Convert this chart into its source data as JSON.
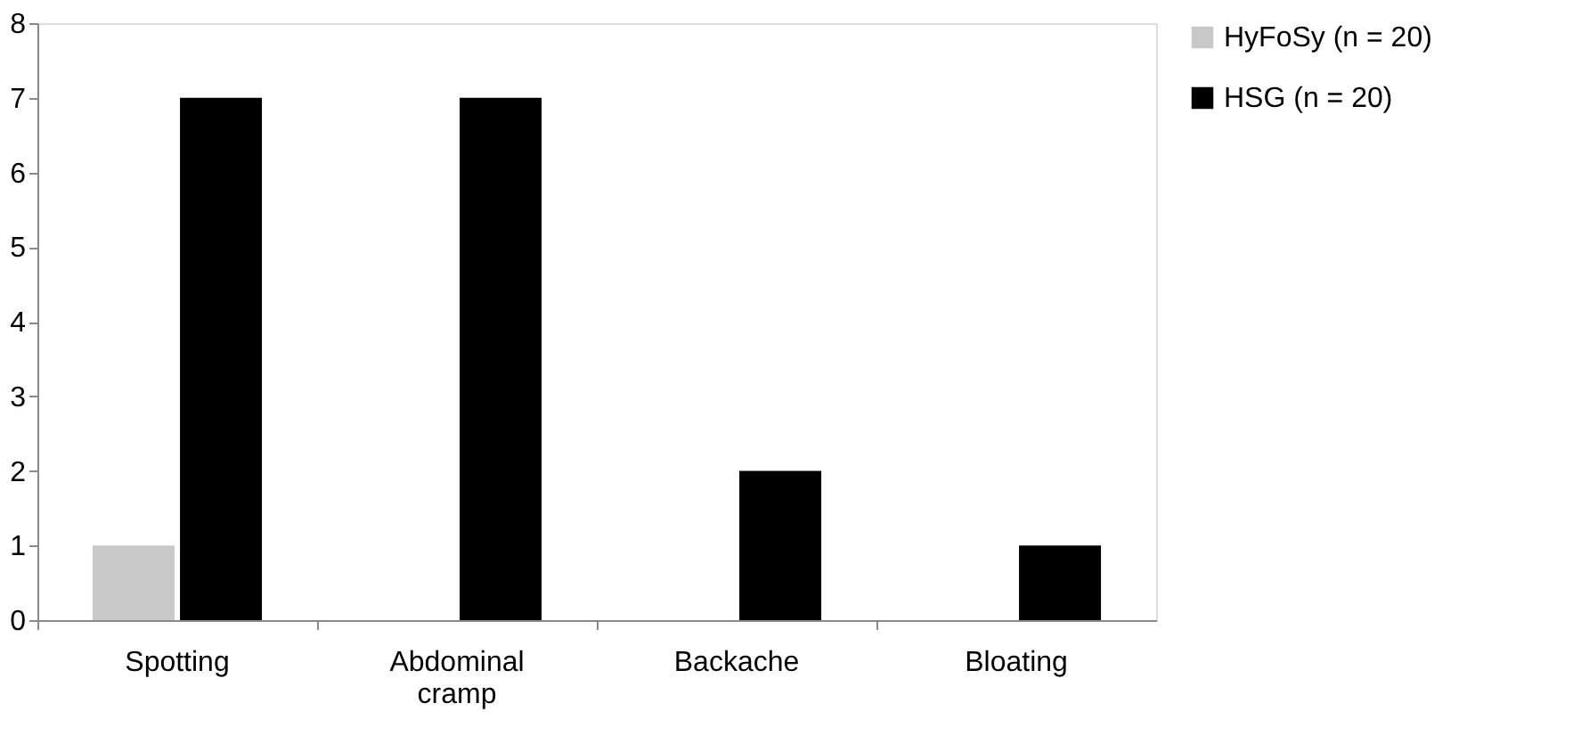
{
  "chart_data": {
    "type": "bar",
    "categories": [
      "Spotting",
      "Abdominal cramp",
      "Backache",
      "Bloating"
    ],
    "series": [
      {
        "name": "HyFoSy (n = 20)",
        "color": "#c8c8c8",
        "values": [
          1,
          0,
          0,
          0
        ]
      },
      {
        "name": "HSG (n = 20)",
        "color": "#000000",
        "values": [
          7,
          7,
          2,
          1
        ]
      }
    ],
    "ylim": [
      0,
      8
    ],
    "yticks": [
      0,
      1,
      2,
      3,
      4,
      5,
      6,
      7,
      8
    ],
    "grid": false,
    "legend": "right"
  }
}
